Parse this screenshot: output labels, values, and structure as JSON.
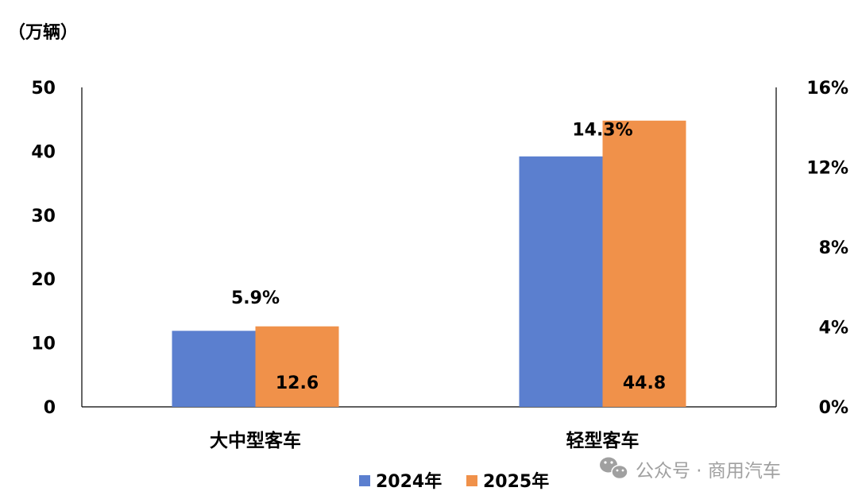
{
  "chart_data": {
    "type": "bar",
    "unit_label": "（万辆）",
    "categories": [
      "大中型客车",
      "轻型客车"
    ],
    "series": [
      {
        "name": "2024年",
        "values": [
          11.9,
          39.2
        ],
        "color": "#5b7fcf"
      },
      {
        "name": "2025年",
        "values": [
          12.6,
          44.8
        ],
        "color": "#f0914a"
      }
    ],
    "value_labels": [
      "12.6",
      "44.8"
    ],
    "growth_rates": [
      5.9,
      14.3
    ],
    "growth_labels": [
      "5.9%",
      "14.3%"
    ],
    "ylim": [
      0,
      50
    ],
    "y_ticks": [
      "0",
      "10",
      "20",
      "30",
      "40",
      "50"
    ],
    "y2lim": [
      0,
      16
    ],
    "y2_ticks": [
      "0%",
      "4%",
      "8%",
      "12%",
      "16%"
    ],
    "legend_position": "bottom",
    "grid": false
  },
  "watermark": {
    "icon": "wechat-icon",
    "text": "公众号 · 商用汽车",
    "color": "#a0a0a0"
  }
}
